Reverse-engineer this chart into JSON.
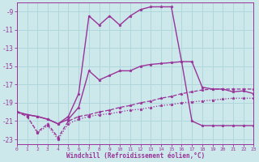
{
  "xlabel": "Windchill (Refroidissement éolien,°C)",
  "background_color": "#cce8ea",
  "grid_color": "#b0d8dc",
  "line_color": "#993399",
  "xlim": [
    0,
    23
  ],
  "ylim": [
    -23.5,
    -8.0
  ],
  "yticks": [
    -9,
    -11,
    -13,
    -15,
    -17,
    -19,
    -21,
    -23
  ],
  "xticks": [
    0,
    1,
    2,
    3,
    4,
    5,
    6,
    7,
    8,
    9,
    10,
    11,
    12,
    13,
    14,
    15,
    16,
    17,
    18,
    19,
    20,
    21,
    22,
    23
  ],
  "series": [
    {
      "x": [
        0,
        1,
        2,
        3,
        4,
        5,
        6,
        7,
        8,
        9,
        10,
        11,
        12,
        13,
        14,
        15,
        16,
        17,
        18,
        19,
        20,
        21,
        22,
        23
      ],
      "y": [
        -20.0,
        -20.3,
        -20.5,
        -20.8,
        -21.3,
        -20.5,
        -18.0,
        -9.5,
        -10.5,
        -9.5,
        -10.5,
        -9.5,
        -8.8,
        -8.5,
        -8.5,
        -8.5,
        -14.5,
        -21.0,
        -21.5,
        -21.5,
        -21.5,
        -21.5,
        -21.5,
        -21.5
      ],
      "ls": "-",
      "lw": 1.0
    },
    {
      "x": [
        0,
        1,
        2,
        3,
        4,
        5,
        6,
        7,
        8,
        9,
        10,
        11,
        12,
        13,
        14,
        15,
        16,
        17,
        18,
        19,
        20,
        21,
        22,
        23
      ],
      "y": [
        -20.0,
        -20.3,
        -20.5,
        -20.8,
        -21.3,
        -20.8,
        -19.5,
        -15.5,
        -16.5,
        -16.0,
        -15.5,
        -15.5,
        -15.0,
        -14.8,
        -14.7,
        -14.6,
        -14.5,
        -14.5,
        -17.3,
        -17.5,
        -17.5,
        -17.8,
        -17.7,
        -18.0
      ],
      "ls": "-",
      "lw": 1.0
    },
    {
      "x": [
        0,
        1,
        2,
        3,
        4,
        5,
        6,
        7,
        8,
        9,
        10,
        11,
        12,
        13,
        14,
        15,
        16,
        17,
        18,
        19,
        20,
        21,
        22,
        23
      ],
      "y": [
        -20.0,
        -20.5,
        -22.2,
        -21.3,
        -22.8,
        -21.0,
        -20.5,
        -20.3,
        -20.0,
        -19.8,
        -19.5,
        -19.3,
        -19.0,
        -18.8,
        -18.5,
        -18.3,
        -18.0,
        -17.8,
        -17.6,
        -17.5,
        -17.5,
        -17.5,
        -17.5,
        -17.5
      ],
      "ls": "--",
      "lw": 0.9
    },
    {
      "x": [
        0,
        1,
        2,
        3,
        4,
        5,
        6,
        7,
        8,
        9,
        10,
        11,
        12,
        13,
        14,
        15,
        16,
        17,
        18,
        19,
        20,
        21,
        22,
        23
      ],
      "y": [
        -20.0,
        -20.5,
        -22.3,
        -21.5,
        -23.0,
        -21.3,
        -20.8,
        -20.5,
        -20.3,
        -20.2,
        -20.0,
        -19.8,
        -19.7,
        -19.5,
        -19.3,
        -19.2,
        -19.0,
        -18.9,
        -18.8,
        -18.7,
        -18.6,
        -18.5,
        -18.5,
        -18.5
      ],
      "ls": ":",
      "lw": 0.9
    }
  ]
}
